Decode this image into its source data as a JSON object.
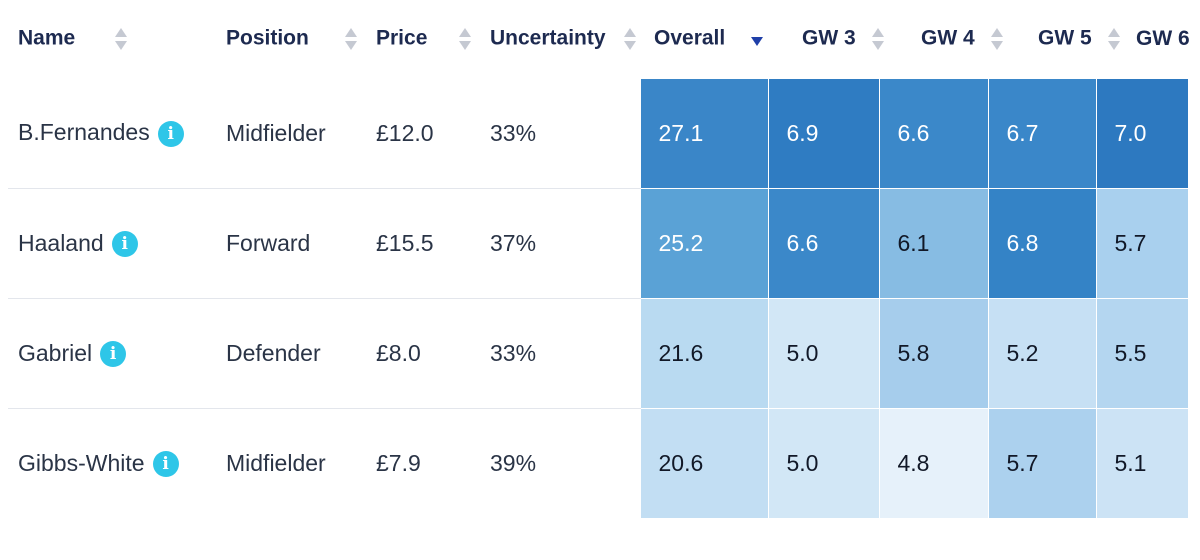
{
  "columns": {
    "name": "Name",
    "position": "Position",
    "price": "Price",
    "uncertainty": "Uncertainty",
    "overall": "Overall",
    "gw3": "GW 3",
    "gw4": "GW 4",
    "gw5": "GW 5",
    "gw6": "GW 6"
  },
  "sort": {
    "column": "overall",
    "direction": "descending"
  },
  "info_glyph": "i",
  "colors": {
    "info_badge": "#2ec6e8",
    "sort_active": "#1f3fa8",
    "heat_darkest": "#2f7fc4",
    "heat_lightest": "#e6f1fa"
  },
  "rows": [
    {
      "name": "B.Fernandes",
      "position": "Midfielder",
      "price": "£12.0",
      "uncertainty": "33%",
      "overall": "27.1",
      "gw3": "6.9",
      "gw4": "6.6",
      "gw5": "6.7",
      "gw6": "7.0",
      "heat": {
        "overall": "#3a86c8",
        "gw3": "#2f7cc2",
        "gw4": "#3b88c9",
        "gw5": "#3a87c9",
        "gw6": "#2d79c0"
      }
    },
    {
      "name": "Haaland",
      "position": "Forward",
      "price": "£15.5",
      "uncertainty": "37%",
      "overall": "25.2",
      "gw3": "6.6",
      "gw4": "6.1",
      "gw5": "6.8",
      "gw6": "5.7",
      "heat": {
        "overall": "#5aa2d6",
        "gw3": "#3b88c9",
        "gw4": "#87bce3",
        "gw5": "#3483c6",
        "gw6": "#a9d0ee"
      }
    },
    {
      "name": "Gabriel",
      "position": "Defender",
      "price": "£8.0",
      "uncertainty": "33%",
      "overall": "21.6",
      "gw3": "5.0",
      "gw4": "5.8",
      "gw5": "5.2",
      "gw6": "5.5",
      "heat": {
        "overall": "#b9daf1",
        "gw3": "#d2e7f6",
        "gw4": "#a6cdec",
        "gw5": "#c6e0f4",
        "gw6": "#b4d6f0"
      }
    },
    {
      "name": "Gibbs-White",
      "position": "Midfielder",
      "price": "£7.9",
      "uncertainty": "39%",
      "overall": "20.6",
      "gw3": "5.0",
      "gw4": "4.8",
      "gw5": "5.7",
      "gw6": "5.1",
      "heat": {
        "overall": "#c2def3",
        "gw3": "#d2e7f6",
        "gw4": "#e6f1fa",
        "gw5": "#acd1ee",
        "gw6": "#cce3f5"
      }
    }
  ]
}
